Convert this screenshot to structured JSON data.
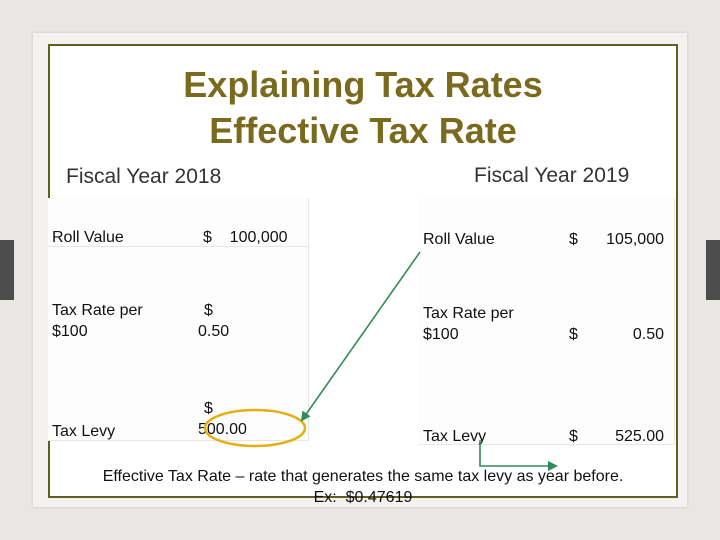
{
  "slide": {
    "title_line1": "Explaining Tax Rates",
    "title_line2": "Effective Tax Rate"
  },
  "fy2018": {
    "heading": "Fiscal Year 2018",
    "rows": [
      {
        "label": "Roll Value",
        "value": "$    100,000"
      },
      {
        "label_line1": "Tax Rate per",
        "label_line2": "$100",
        "value_line1": "$",
        "value_line2": "0.50"
      },
      {
        "label": "Tax Levy",
        "value_line1": "$",
        "value_line2": "500.00"
      }
    ]
  },
  "fy2019": {
    "heading": "Fiscal Year 2019",
    "rows": [
      {
        "label": "Roll Value",
        "currency": "$",
        "amount": "105,000"
      },
      {
        "label_line1": "Tax Rate per",
        "label_line2": "$100",
        "currency": "$",
        "amount": "0.50"
      },
      {
        "label": "Tax Levy",
        "currency": "$",
        "amount": "525.00"
      }
    ]
  },
  "footnote": {
    "line1": "Effective Tax Rate – rate that generates the same tax levy as year before.",
    "line2": "Ex:  $0.47619"
  },
  "colors": {
    "title": "#7a6a1e",
    "border": "#5f5f1e",
    "arrow": "#2e8b57",
    "circle": "#e3b00f"
  }
}
